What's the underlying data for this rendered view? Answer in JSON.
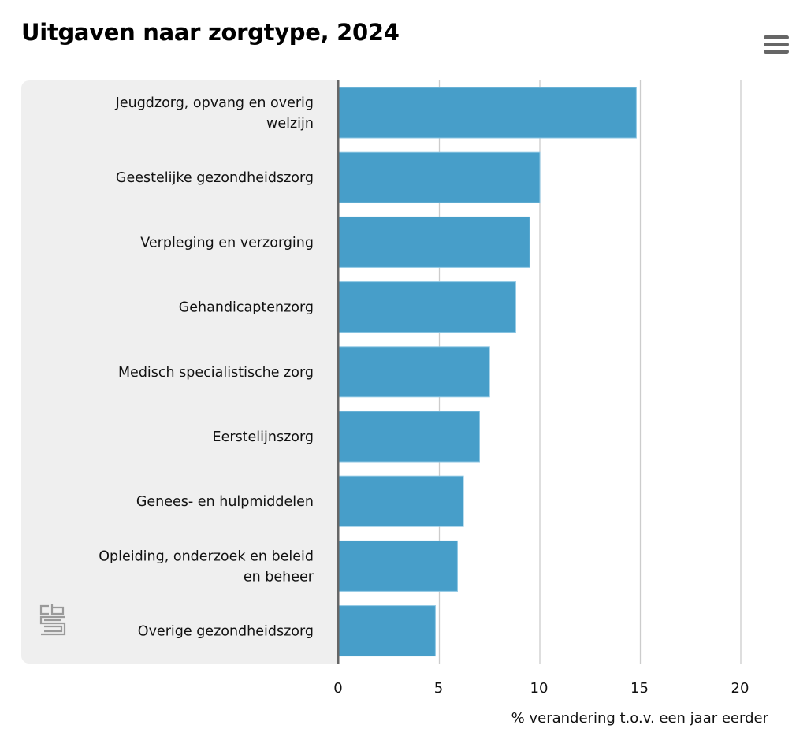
{
  "title": "Uitgaven naar zorgtype, 2024",
  "menu_icon": "hamburger-menu-icon",
  "logo": "CBS",
  "chart_data": {
    "type": "bar",
    "orientation": "horizontal",
    "title": "Uitgaven naar zorgtype, 2024",
    "categories": [
      [
        "Jeugdzorg, opvang en overig",
        "welzijn"
      ],
      [
        "Geestelijke gezondheidszorg"
      ],
      [
        "Verpleging en verzorging"
      ],
      [
        "Gehandicaptenzorg"
      ],
      [
        "Medisch specialistische zorg"
      ],
      [
        "Eerstelijnszorg"
      ],
      [
        "Genees- en hulpmiddelen"
      ],
      [
        "Opleiding, onderzoek en beleid",
        "en beheer"
      ],
      [
        "Overige gezondheidszorg"
      ]
    ],
    "values": [
      14.8,
      10.0,
      9.5,
      8.8,
      7.5,
      7.0,
      6.2,
      5.9,
      4.8
    ],
    "xlabel": "% verandering t.o.v. een jaar eerder",
    "xlim": [
      0,
      20
    ],
    "xticks": [
      "0",
      "5",
      "10",
      "15",
      "20"
    ],
    "grid": true,
    "bar_color": "#479ec9"
  }
}
